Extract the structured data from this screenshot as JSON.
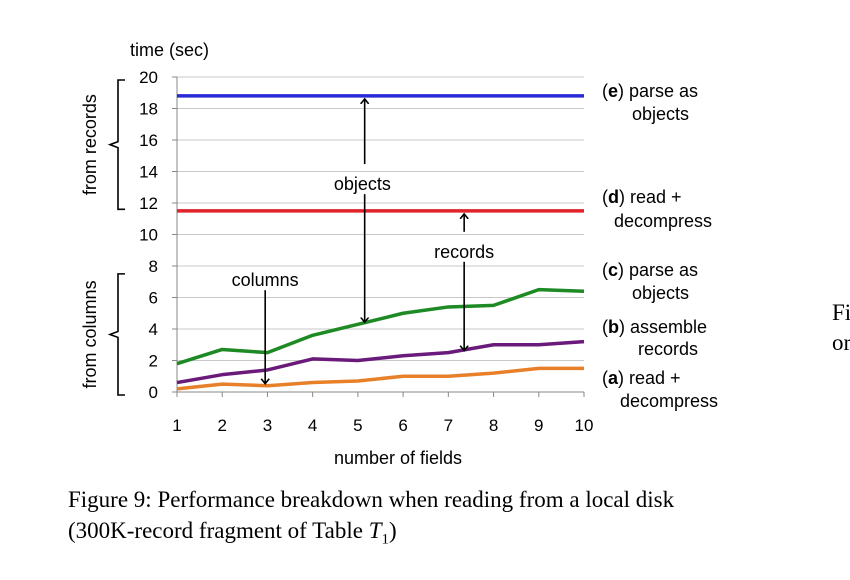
{
  "chart_data": {
    "type": "line",
    "ylabel": "time (sec)",
    "xlabel": "number of fields",
    "x": [
      1,
      2,
      3,
      4,
      5,
      6,
      7,
      8,
      9,
      10
    ],
    "xticks": [
      "1",
      "2",
      "3",
      "4",
      "5",
      "6",
      "7",
      "8",
      "9",
      "10"
    ],
    "ylim": [
      0,
      20
    ],
    "yticks": [
      "0",
      "2",
      "4",
      "6",
      "8",
      "10",
      "12",
      "14",
      "16",
      "18",
      "20"
    ],
    "grid": true,
    "series": [
      {
        "name": "(e) parse as objects",
        "key": "e",
        "color": "#2a2ad8",
        "values": [
          18.8,
          18.8,
          18.8,
          18.8,
          18.8,
          18.8,
          18.8,
          18.8,
          18.8,
          18.8
        ]
      },
      {
        "name": "(d) read + decompress",
        "key": "d",
        "color": "#e0242a",
        "values": [
          11.5,
          11.5,
          11.5,
          11.5,
          11.5,
          11.5,
          11.5,
          11.5,
          11.5,
          11.5
        ]
      },
      {
        "name": "(c) parse as objects",
        "key": "c",
        "color": "#1e8a24",
        "values": [
          1.8,
          2.7,
          2.5,
          3.6,
          4.3,
          5.0,
          5.4,
          5.5,
          6.5,
          6.4
        ]
      },
      {
        "name": "(b) assemble records",
        "key": "b",
        "color": "#6a1a7a",
        "values": [
          0.6,
          1.1,
          1.4,
          2.1,
          2.0,
          2.3,
          2.5,
          3.0,
          3.0,
          3.2
        ]
      },
      {
        "name": "(a) read + decompress",
        "key": "a",
        "color": "#e8802a",
        "values": [
          0.2,
          0.5,
          0.4,
          0.6,
          0.7,
          1.0,
          1.0,
          1.2,
          1.5,
          1.5
        ]
      }
    ],
    "legend": [
      {
        "key": "e",
        "bold": "e",
        "line1": "parse as",
        "line2": "objects"
      },
      {
        "key": "d",
        "bold": "d",
        "line1": "read +",
        "line2": "decompress"
      },
      {
        "key": "c",
        "bold": "c",
        "line1": "parse as",
        "line2": "objects"
      },
      {
        "key": "b",
        "bold": "b",
        "line1": "assemble",
        "line2": "records"
      },
      {
        "key": "a",
        "bold": "a",
        "line1": "read +",
        "line2": "decompress"
      }
    ],
    "brackets": {
      "from_records": "from records",
      "from_columns": "from columns"
    },
    "annotations": [
      {
        "text": "objects",
        "x": 5.1,
        "y": 13.2,
        "arrow_from": 5.15,
        "arrow_top": 18.8,
        "arrow_bottom": 4.3
      },
      {
        "text": "records",
        "x": 7.35,
        "y": 8.9,
        "arrow_from": 7.35,
        "arrow_top": 11.5,
        "arrow_bottom": 2.5
      },
      {
        "text": "columns",
        "x": 2.95,
        "y": 7.1,
        "arrow_from": 2.95,
        "arrow_top": 6.3,
        "arrow_bottom": 0.4
      }
    ]
  },
  "caption": {
    "line1": "Figure 9: Performance breakdown when reading from a local disk",
    "line2_prefix": "(300K-record fragment of Table ",
    "line2_var": "T",
    "line2_sub": "1",
    "line2_suffix": ")"
  },
  "side_text": {
    "line1": "Fi",
    "line2": "or"
  }
}
